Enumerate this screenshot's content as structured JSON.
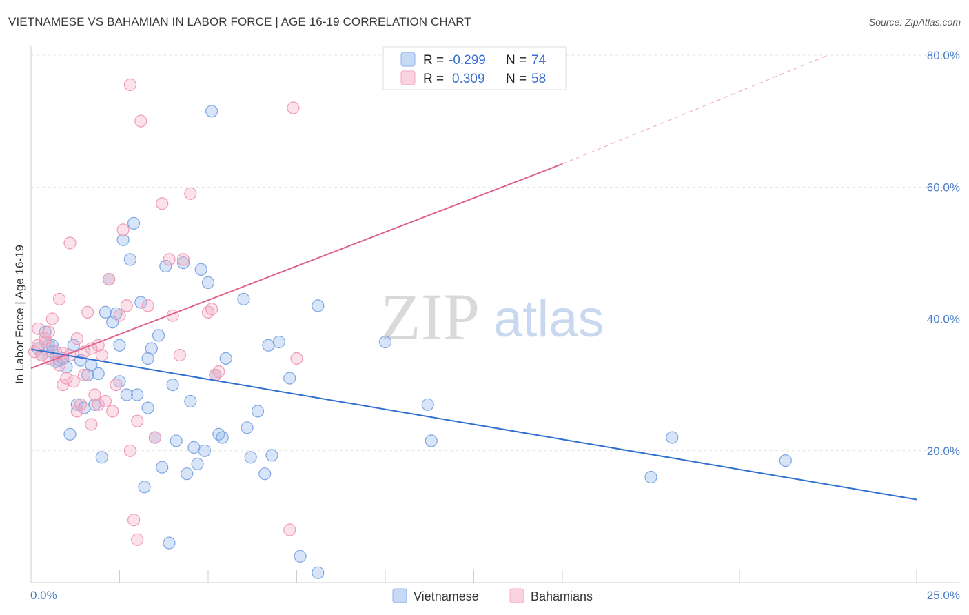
{
  "header": {
    "title": "VIETNAMESE VS BAHAMIAN IN LABOR FORCE | AGE 16-19 CORRELATION CHART",
    "source": "Source: ZipAtlas.com"
  },
  "watermark": {
    "zip": "ZIP",
    "atlas": "atlas"
  },
  "legend_top": {
    "rows": [
      {
        "r_label": "R =",
        "r_value": "-0.299",
        "n_label": "N =",
        "n_value": "74",
        "color": "#8fb4ea"
      },
      {
        "r_label": "R =",
        "r_value": "0.309",
        "n_label": "N =",
        "n_value": "58",
        "color": "#f4a9c0"
      }
    ]
  },
  "legend_bottom": {
    "items": [
      {
        "label": "Vietnamese",
        "color": "#8fb4ea"
      },
      {
        "label": "Bahamians",
        "color": "#f4a9c0"
      }
    ]
  },
  "chart_data": {
    "type": "scatter",
    "title": "VIETNAMESE VS BAHAMIAN IN LABOR FORCE | AGE 16-19 CORRELATION CHART",
    "ylabel": "In Labor Force | Age 16-19",
    "xlabel": "",
    "xlim": [
      0,
      25
    ],
    "ylim": [
      0,
      80
    ],
    "x_tick_labels": [
      "0.0%",
      "25.0%"
    ],
    "y_tick_labels": [
      "20.0%",
      "40.0%",
      "60.0%",
      "80.0%"
    ],
    "y_ticks": [
      20,
      40,
      60,
      80
    ],
    "grid": true,
    "series": [
      {
        "name": "Vietnamese",
        "color": "#6a9be0",
        "trend": {
          "x0": 0,
          "y0": 35.4,
          "x1": 25,
          "y1": 12.6,
          "r": -0.299,
          "n": 74
        },
        "points": [
          [
            0.2,
            35.5
          ],
          [
            0.3,
            34.5
          ],
          [
            0.4,
            38
          ],
          [
            0.5,
            36
          ],
          [
            0.6,
            35
          ],
          [
            0.7,
            33.5
          ],
          [
            0.8,
            33.7
          ],
          [
            0.9,
            34
          ],
          [
            1.0,
            32.7
          ],
          [
            1.1,
            22.5
          ],
          [
            1.2,
            36
          ],
          [
            1.3,
            27
          ],
          [
            1.4,
            33.7
          ],
          [
            1.5,
            26.5
          ],
          [
            1.6,
            31.5
          ],
          [
            1.7,
            33
          ],
          [
            1.8,
            27
          ],
          [
            1.9,
            31.7
          ],
          [
            2.0,
            19
          ],
          [
            2.1,
            41
          ],
          [
            2.2,
            46
          ],
          [
            2.3,
            39.5
          ],
          [
            2.4,
            40.8
          ],
          [
            2.5,
            30.5
          ],
          [
            2.5,
            36
          ],
          [
            2.6,
            52
          ],
          [
            2.7,
            28.5
          ],
          [
            2.8,
            49
          ],
          [
            2.9,
            54.5
          ],
          [
            3.0,
            28.5
          ],
          [
            3.1,
            42.5
          ],
          [
            3.2,
            14.5
          ],
          [
            3.3,
            26.5
          ],
          [
            3.3,
            34
          ],
          [
            3.4,
            35.5
          ],
          [
            3.5,
            22
          ],
          [
            3.6,
            37.5
          ],
          [
            3.7,
            17.5
          ],
          [
            3.8,
            48
          ],
          [
            3.9,
            6
          ],
          [
            4.0,
            30
          ],
          [
            4.1,
            21.5
          ],
          [
            4.3,
            48.5
          ],
          [
            4.4,
            16.5
          ],
          [
            4.5,
            27.5
          ],
          [
            4.6,
            20.5
          ],
          [
            4.7,
            18
          ],
          [
            4.8,
            47.5
          ],
          [
            4.9,
            20
          ],
          [
            5.0,
            45.5
          ],
          [
            5.1,
            71.5
          ],
          [
            5.2,
            31.5
          ],
          [
            5.3,
            22.5
          ],
          [
            5.4,
            22
          ],
          [
            5.5,
            34
          ],
          [
            6.0,
            43
          ],
          [
            6.1,
            23.5
          ],
          [
            6.2,
            19
          ],
          [
            6.4,
            26
          ],
          [
            6.6,
            16.5
          ],
          [
            6.8,
            19.3
          ],
          [
            6.7,
            36
          ],
          [
            7.0,
            36.5
          ],
          [
            7.3,
            31
          ],
          [
            7.6,
            4
          ],
          [
            8.1,
            1.5
          ],
          [
            8.1,
            42
          ],
          [
            10.0,
            36.5
          ],
          [
            11.2,
            27
          ],
          [
            11.3,
            21.5
          ],
          [
            17.5,
            16
          ],
          [
            18.1,
            22
          ],
          [
            21.3,
            18.5
          ],
          [
            0.6,
            36
          ]
        ]
      },
      {
        "name": "Bahamians",
        "color": "#f08aab",
        "trend": {
          "x0": 0,
          "y0": 32.5,
          "x1": 15,
          "y1": 63.5,
          "dash_x1": 22.5,
          "dash_y1": 80,
          "r": 0.309,
          "n": 58
        },
        "points": [
          [
            0.1,
            35
          ],
          [
            0.2,
            36
          ],
          [
            0.2,
            38.5
          ],
          [
            0.3,
            34.5
          ],
          [
            0.4,
            37
          ],
          [
            0.5,
            38
          ],
          [
            0.5,
            34
          ],
          [
            0.6,
            40
          ],
          [
            0.7,
            35
          ],
          [
            0.8,
            33
          ],
          [
            0.8,
            43
          ],
          [
            0.9,
            30
          ],
          [
            1.0,
            31
          ],
          [
            1.1,
            34.5
          ],
          [
            1.2,
            30.5
          ],
          [
            1.3,
            37
          ],
          [
            1.3,
            26
          ],
          [
            1.4,
            27
          ],
          [
            1.5,
            31.5
          ],
          [
            1.6,
            41
          ],
          [
            1.7,
            24
          ],
          [
            1.7,
            35.5
          ],
          [
            1.8,
            28.5
          ],
          [
            1.9,
            36
          ],
          [
            1.9,
            27
          ],
          [
            2.0,
            34.5
          ],
          [
            2.1,
            27.5
          ],
          [
            2.2,
            46
          ],
          [
            2.3,
            26
          ],
          [
            2.4,
            30
          ],
          [
            2.5,
            40.5
          ],
          [
            2.6,
            53.5
          ],
          [
            2.7,
            42
          ],
          [
            2.8,
            20
          ],
          [
            2.9,
            9.5
          ],
          [
            3.0,
            6.5
          ],
          [
            3.1,
            70
          ],
          [
            3.0,
            24.5
          ],
          [
            3.3,
            42
          ],
          [
            3.5,
            22
          ],
          [
            3.7,
            57.5
          ],
          [
            3.9,
            49
          ],
          [
            4.0,
            40.5
          ],
          [
            4.2,
            34.5
          ],
          [
            4.3,
            49
          ],
          [
            4.5,
            59
          ],
          [
            5.0,
            41
          ],
          [
            5.1,
            41.5
          ],
          [
            5.2,
            31.5
          ],
          [
            5.3,
            32
          ],
          [
            7.3,
            8
          ],
          [
            7.4,
            72
          ],
          [
            7.5,
            34
          ],
          [
            2.8,
            75.5
          ],
          [
            1.1,
            51.5
          ],
          [
            0.4,
            36.5
          ],
          [
            0.9,
            34.8
          ],
          [
            1.5,
            35
          ]
        ]
      }
    ]
  }
}
